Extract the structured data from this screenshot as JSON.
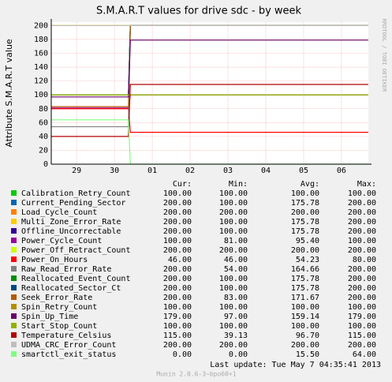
{
  "chart_data": {
    "type": "line",
    "title": "S.M.A.R.T values for drive sdc - by week",
    "y_label": "Attribute S.M.A.R.T value",
    "watermark": "RRDTOOL / TOBI OETIKER",
    "x": [
      -0.17,
      1.87,
      1.92,
      8.21
    ],
    "xlim": [
      -0.17,
      8.21
    ],
    "xticks": [
      {
        "value": 0.5,
        "label": "29"
      },
      {
        "value": 1.5,
        "label": "30"
      },
      {
        "value": 2.5,
        "label": "01"
      },
      {
        "value": 3.5,
        "label": "02"
      },
      {
        "value": 4.5,
        "label": "03"
      },
      {
        "value": 5.5,
        "label": "04"
      },
      {
        "value": 6.5,
        "label": "05"
      },
      {
        "value": 7.5,
        "label": "06"
      }
    ],
    "ylim": [
      0,
      205
    ],
    "yticks": [
      0,
      20,
      40,
      60,
      80,
      100,
      120,
      140,
      160,
      180,
      200
    ],
    "grid": true,
    "stat_headers": [
      "Cur:",
      "Min:",
      "Avg:",
      "Max:"
    ],
    "series": [
      {
        "name": "Calibration_Retry_Count",
        "color": "#00cc00",
        "values": [
          100,
          100,
          100,
          100
        ],
        "stats": [
          "100.00",
          "100.00",
          "100.00",
          "100.00"
        ]
      },
      {
        "name": "Current_Pending_Sector",
        "color": "#0066b3",
        "values": [
          100,
          100,
          200,
          200
        ],
        "stats": [
          "200.00",
          "100.00",
          "175.78",
          "200.00"
        ]
      },
      {
        "name": "Load_Cycle_Count",
        "color": "#ff8000",
        "values": [
          200,
          200,
          200,
          200
        ],
        "stats": [
          "200.00",
          "200.00",
          "200.00",
          "200.00"
        ]
      },
      {
        "name": "Multi_Zone_Error_Rate",
        "color": "#ffcc00",
        "values": [
          100,
          100,
          200,
          200
        ],
        "stats": [
          "200.00",
          "100.00",
          "175.78",
          "200.00"
        ]
      },
      {
        "name": "Offline_Uncorrectable",
        "color": "#330099",
        "values": [
          100,
          100,
          200,
          200
        ],
        "stats": [
          "200.00",
          "100.00",
          "175.78",
          "200.00"
        ]
      },
      {
        "name": "Power_Cycle_Count",
        "color": "#990099",
        "values": [
          81,
          81,
          100,
          100
        ],
        "stats": [
          "100.00",
          "81.00",
          "95.40",
          "100.00"
        ]
      },
      {
        "name": "Power_Off_Retract_Count",
        "color": "#ccff00",
        "values": [
          200,
          200,
          200,
          200
        ],
        "stats": [
          "200.00",
          "200.00",
          "200.00",
          "200.00"
        ]
      },
      {
        "name": "Power_On_Hours",
        "color": "#ff0000",
        "values": [
          80,
          80,
          46,
          46
        ],
        "stats": [
          "46.00",
          "46.00",
          "54.23",
          "80.00"
        ]
      },
      {
        "name": "Raw_Read_Error_Rate",
        "color": "#808080",
        "values": [
          54,
          54,
          200,
          200
        ],
        "stats": [
          "200.00",
          "54.00",
          "164.66",
          "200.00"
        ]
      },
      {
        "name": "Reallocated_Event_Count",
        "color": "#008f00",
        "values": [
          100,
          100,
          200,
          200
        ],
        "stats": [
          "200.00",
          "100.00",
          "175.78",
          "200.00"
        ]
      },
      {
        "name": "Reallocated_Sector_Ct",
        "color": "#00487d",
        "values": [
          100,
          100,
          200,
          200
        ],
        "stats": [
          "200.00",
          "100.00",
          "175.78",
          "200.00"
        ]
      },
      {
        "name": "Seek_Error_Rate",
        "color": "#b35a00",
        "values": [
          83,
          83,
          200,
          200
        ],
        "stats": [
          "200.00",
          "83.00",
          "171.67",
          "200.00"
        ]
      },
      {
        "name": "Spin_Retry_Count",
        "color": "#b38f00",
        "values": [
          100,
          100,
          100,
          100
        ],
        "stats": [
          "100.00",
          "100.00",
          "100.00",
          "100.00"
        ]
      },
      {
        "name": "Spin_Up_Time",
        "color": "#6b006b",
        "values": [
          97,
          97,
          179,
          179
        ],
        "stats": [
          "179.00",
          "97.00",
          "159.14",
          "179.00"
        ]
      },
      {
        "name": "Start_Stop_Count",
        "color": "#8fb300",
        "values": [
          100,
          100,
          100,
          100
        ],
        "stats": [
          "100.00",
          "100.00",
          "100.00",
          "100.00"
        ]
      },
      {
        "name": "Temperature_Celsius",
        "color": "#b30000",
        "values": [
          40,
          40,
          115,
          115
        ],
        "stats": [
          "115.00",
          "39.13",
          "96.70",
          "115.00"
        ]
      },
      {
        "name": "UDMA_CRC_Error_Count",
        "color": "#bebebe",
        "values": [
          200,
          200,
          200,
          200
        ],
        "stats": [
          "200.00",
          "200.00",
          "200.00",
          "200.00"
        ]
      },
      {
        "name": "smartctl_exit_status",
        "color": "#80ff80",
        "values": [
          64,
          64,
          0,
          0
        ],
        "stats": [
          "0.00",
          "0.00",
          "15.50",
          "64.00"
        ]
      }
    ],
    "last_update": "Last update:  Tue May  7 04:35:41 2013",
    "footer": "Munin 2.0.6-3~bpo60+1"
  }
}
